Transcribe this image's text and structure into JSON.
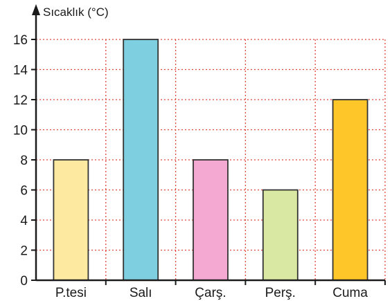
{
  "chart_data": {
    "type": "bar",
    "title": "",
    "xlabel": "",
    "ylabel": "Sıcaklık (°C)",
    "categories": [
      "P.tesi",
      "Salı",
      "Çarş.",
      "Perş.",
      "Cuma"
    ],
    "values": [
      8,
      16,
      8,
      6,
      12
    ],
    "ylim": [
      0,
      16
    ],
    "yticks": [
      0,
      2,
      4,
      6,
      8,
      10,
      12,
      14,
      16
    ],
    "grid": true,
    "grid_color": "#e0453a",
    "bar_colors": [
      "#fde9a0",
      "#7ecfe0",
      "#f4a9d2",
      "#d9e8a2",
      "#ffc629"
    ],
    "bar_outline": "#333333"
  }
}
